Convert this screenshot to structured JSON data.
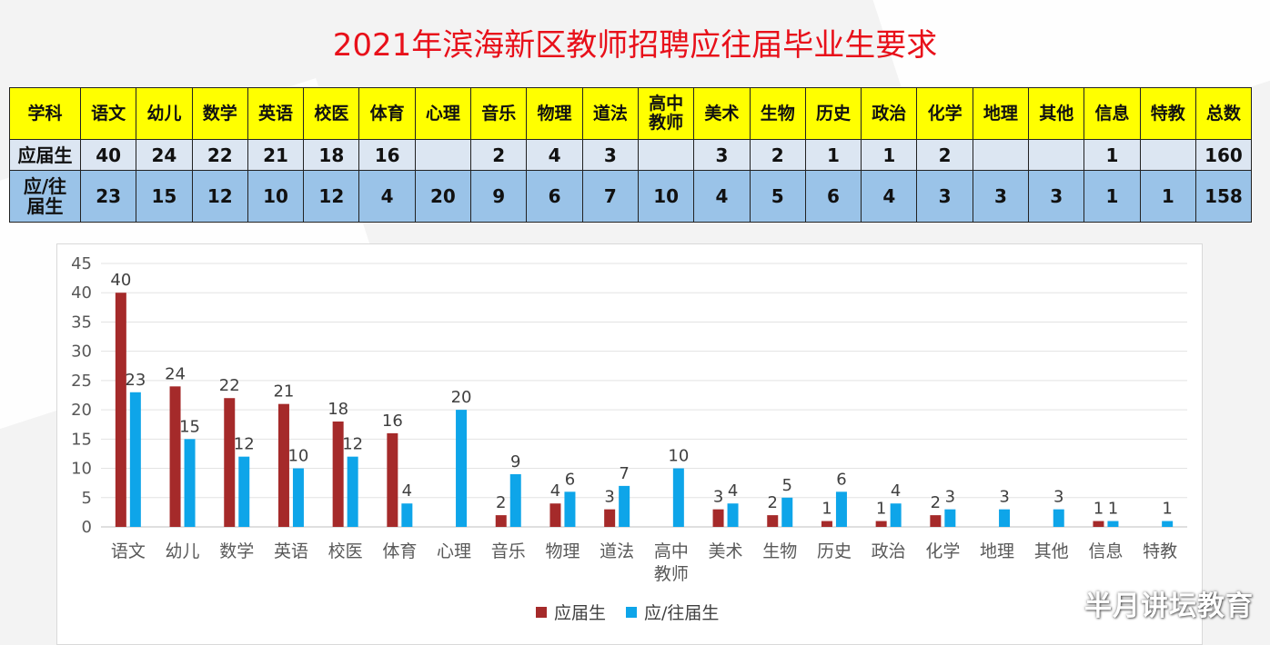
{
  "title": "2021年滨海新区教师招聘应往届毕业生要求",
  "table": {
    "header_label": "学科",
    "subjects": [
      "语文",
      "幼儿",
      "数学",
      "英语",
      "校医",
      "体育",
      "心理",
      "音乐",
      "物理",
      "道法",
      "高中\n教师",
      "美术",
      "生物",
      "历史",
      "政治",
      "化学",
      "地理",
      "其他",
      "信息",
      "特教"
    ],
    "total_label": "总数",
    "rows": [
      {
        "label": "应届生",
        "values": [
          "40",
          "24",
          "22",
          "21",
          "18",
          "16",
          "",
          "2",
          "4",
          "3",
          "",
          "3",
          "2",
          "1",
          "1",
          "2",
          "",
          "",
          "1",
          ""
        ],
        "total": "160"
      },
      {
        "label": "应/往\n届生",
        "values": [
          "23",
          "15",
          "12",
          "10",
          "12",
          "4",
          "20",
          "9",
          "6",
          "7",
          "10",
          "4",
          "5",
          "6",
          "4",
          "3",
          "3",
          "3",
          "1",
          "1"
        ],
        "total": "158"
      }
    ]
  },
  "chart_data": {
    "type": "bar",
    "categories": [
      "语文",
      "幼儿",
      "数学",
      "英语",
      "校医",
      "体育",
      "心理",
      "音乐",
      "物理",
      "道法",
      "高中\n教师",
      "美术",
      "生物",
      "历史",
      "政治",
      "化学",
      "地理",
      "其他",
      "信息",
      "特教"
    ],
    "series": [
      {
        "name": "应届生",
        "color": "#a52a2a",
        "values": [
          40,
          24,
          22,
          21,
          18,
          16,
          null,
          2,
          4,
          3,
          null,
          3,
          2,
          1,
          1,
          2,
          null,
          null,
          1,
          null
        ]
      },
      {
        "name": "应/往届生",
        "color": "#0ea5e9",
        "values": [
          23,
          15,
          12,
          10,
          12,
          4,
          20,
          9,
          6,
          7,
          10,
          4,
          5,
          6,
          4,
          3,
          3,
          3,
          1,
          1
        ]
      }
    ],
    "ylim": [
      0,
      45
    ],
    "yticks": [
      0,
      5,
      10,
      15,
      20,
      25,
      30,
      35,
      40,
      45
    ],
    "grid": true,
    "legend": "bottom-center",
    "data_labels": true
  },
  "watermark": "半月讲坛教育"
}
